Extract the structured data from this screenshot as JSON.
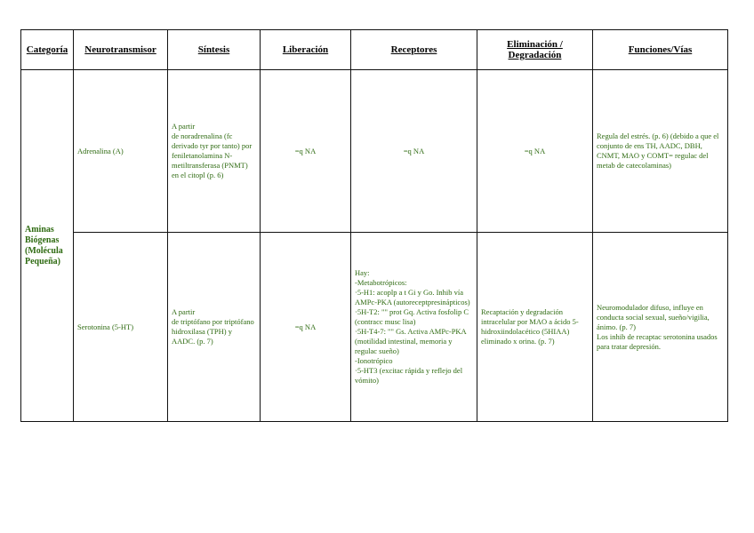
{
  "headers": {
    "categoria": "Categoría",
    "neurotransmisor": "Neurotransmisor",
    "sintesis": "Síntesis",
    "liberacion": "Liberación",
    "receptores": "Receptores",
    "eliminacion": "Eliminación / Degradación",
    "funciones": "Funciones/Vías"
  },
  "category": "Aminas Biógenas (Molécula Pequeña)",
  "rows": [
    {
      "neurotransmisor": "Adrenalina (A)",
      "sintesis": "A partir\nde noradrenalina (fc derivado tyr por tanto) por feniletanolamina N-metiltransferasa (PNMT) en el citopl (p. 6)",
      "liberacion": "=q NA",
      "receptores": "=q NA",
      "eliminacion": "=q NA",
      "funciones": "Regula del estrés. (p. 6) (debido a que el conjunto de ens TH, AADC, DBH, CNMT, MAO y COMT= regulac del metab de catecolaminas)"
    },
    {
      "neurotransmisor": "Serotonina (5-HT)",
      "sintesis": "A partir\nde triptófano por triptófano hidroxilasa (TPH) y AADC. (p. 7)",
      "liberacion": "=q NA",
      "receptores": "Hay:\n-Metabotrópicos:\n·5-H1: acoplp a t Gi y Go. Inhib vía AMPc-PKA (autoreceptpresinápticos)\n·5H-T2: \"\" prot Gq. Activa fosfolip C (contracc musc lisa)\n·5H-T4-7: \"\" Gs. Activa AMPc-PKA (motilidad intestinal, memoria y regulac sueño)\n-Ionotrópico\n·5-HT3 (excitac rápida y reflejo del vómito)",
      "eliminacion": "Recaptación y degradación intracelular por MAO a ácido 5-hidroxiindolacético (5HIAA) eliminado x orina. (p. 7)",
      "funciones": "Neuromodulador difuso, influye en conducta social sexual, sueño/vigilia, ánimo. (p. 7)\nLos inhib de recaptac serotonina usados para tratar depresión."
    }
  ]
}
